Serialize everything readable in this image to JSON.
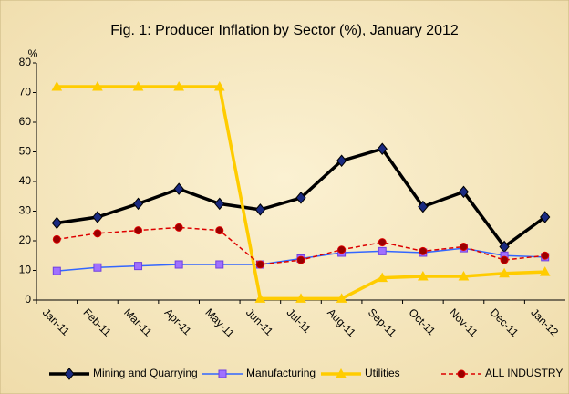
{
  "chart_data": {
    "type": "line",
    "title": "Fig. 1: Producer Inflation by Sector (%), January 2012",
    "y_label": "%",
    "categories": [
      "Jan-11",
      "Feb-11",
      "Mar-11",
      "Apr-11",
      "May-11",
      "Jun-11",
      "Jul-11",
      "Aug-11",
      "Sep-11",
      "Oct-11",
      "Nov-11",
      "Dec-11",
      "Jan-12"
    ],
    "series": [
      {
        "name": "Mining and Quarrying",
        "color": "#000000",
        "marker": "diamond",
        "values": [
          26,
          28,
          32.5,
          37.5,
          32.5,
          30.5,
          34.5,
          47,
          51,
          31.5,
          36.5,
          18,
          28
        ]
      },
      {
        "name": "Manufacturing",
        "color": "#3366ff",
        "marker": "square",
        "values": [
          9.8,
          11,
          11.5,
          12,
          12,
          12,
          14,
          16,
          16.5,
          16,
          17.5,
          15,
          14.5
        ]
      },
      {
        "name": "Utilities",
        "color": "#ffcc00",
        "marker": "triangle",
        "values": [
          72,
          72,
          72,
          72,
          72,
          0.5,
          0.5,
          0.5,
          7.5,
          8,
          8,
          9,
          9.5
        ]
      },
      {
        "name": "ALL INDUSTRY",
        "color": "#dd0000",
        "marker": "circle",
        "dashed": true,
        "values": [
          20.5,
          22.5,
          23.5,
          24.5,
          23.5,
          12,
          13.5,
          17,
          19.5,
          16.5,
          18,
          13.5,
          15
        ]
      }
    ],
    "ylim": [
      0,
      80
    ],
    "yticks": [
      0,
      10,
      20,
      30,
      40,
      50,
      60,
      70,
      80
    ],
    "grid": false,
    "legend": "bottom"
  }
}
